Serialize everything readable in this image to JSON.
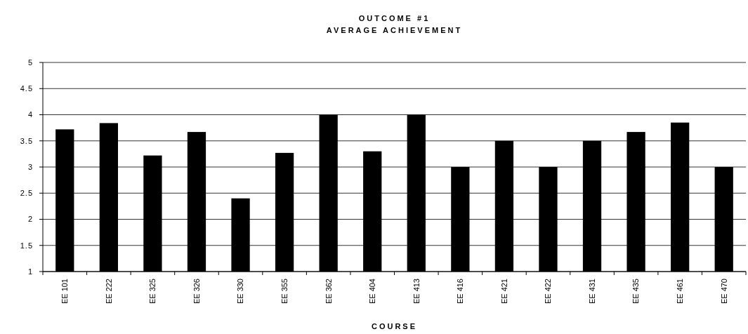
{
  "chart_data": {
    "type": "bar",
    "title": "OUTCOME #1",
    "subtitle": "AVERAGE ACHIEVEMENT",
    "xlabel": "COURSE",
    "categories": [
      "EE 101",
      "EE 222",
      "EE 325",
      "EE 326",
      "EE 330",
      "EE 355",
      "EE 362",
      "EE 404",
      "EE 413",
      "EE 416",
      "EE 421",
      "EE 422",
      "EE 431",
      "EE 435",
      "EE 461",
      "EE 470"
    ],
    "values": [
      3.72,
      3.84,
      3.22,
      3.67,
      2.4,
      3.27,
      4,
      3.3,
      4,
      3,
      3.5,
      3,
      3.5,
      3.67,
      3.85,
      3
    ],
    "color": "#000000",
    "ylim": [
      1,
      5
    ],
    "yticks": [
      1,
      {
        "value": 1.5,
        "label": "1.5"
      },
      2,
      {
        "value": 2.5,
        "label": "2.5"
      },
      3,
      {
        "value": 3.5,
        "label": "3.5"
      },
      4,
      {
        "value": 4.5,
        "label": "4.5"
      },
      5
    ],
    "grid": "y"
  }
}
